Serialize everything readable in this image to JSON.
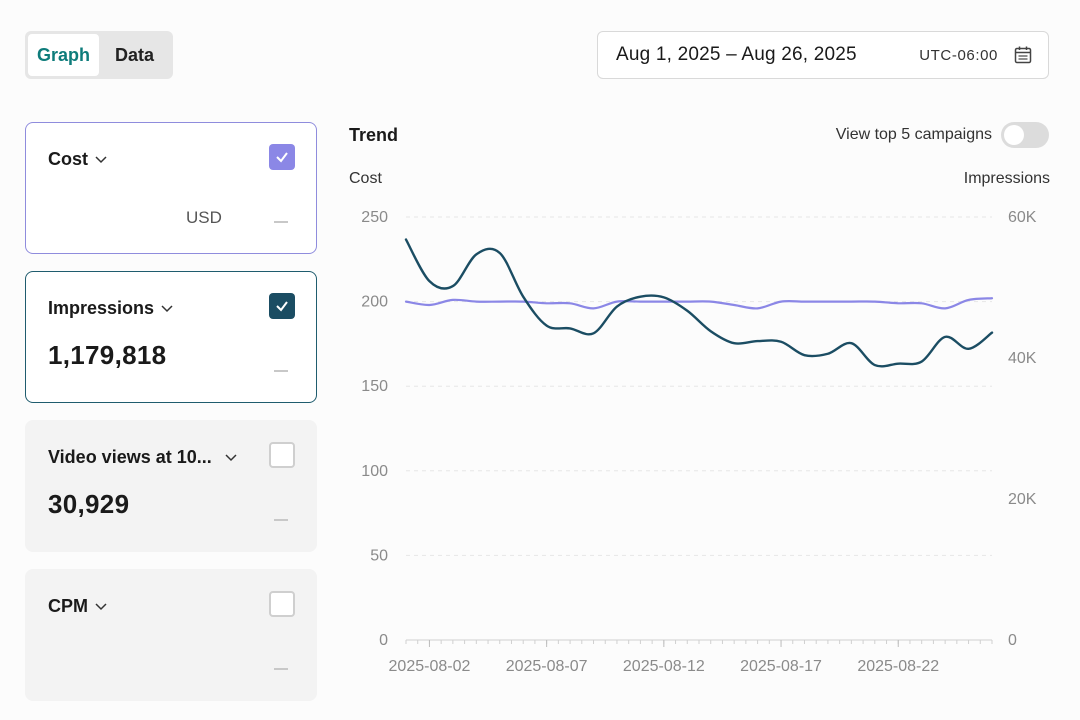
{
  "view_toggle": {
    "graph_label": "Graph",
    "data_label": "Data",
    "active": "Graph"
  },
  "date_picker": {
    "range": "Aug 1, 2025 – Aug 26, 2025",
    "timezone": "UTC-06:00",
    "icon": "calendar-icon"
  },
  "metrics": [
    {
      "label": "Cost",
      "value": "",
      "unit": "USD",
      "checked": true,
      "check_color": "#8b87e6"
    },
    {
      "label": "Impressions",
      "value": "1,179,818",
      "unit": "",
      "checked": true,
      "check_color": "#1b4d63"
    },
    {
      "label": "Video views at 10...",
      "value": "30,929",
      "unit": "",
      "checked": false
    },
    {
      "label": "CPM",
      "value": "",
      "unit": "",
      "checked": false
    }
  ],
  "panel": {
    "title": "Trend",
    "toggle_label": "View top 5 campaigns",
    "toggle_on": false,
    "left_axis_label": "Cost",
    "right_axis_label": "Impressions"
  },
  "chart_data": {
    "type": "line",
    "x": [
      "2025-08-01",
      "2025-08-02",
      "2025-08-03",
      "2025-08-04",
      "2025-08-05",
      "2025-08-06",
      "2025-08-07",
      "2025-08-08",
      "2025-08-09",
      "2025-08-10",
      "2025-08-11",
      "2025-08-12",
      "2025-08-13",
      "2025-08-14",
      "2025-08-15",
      "2025-08-16",
      "2025-08-17",
      "2025-08-18",
      "2025-08-19",
      "2025-08-20",
      "2025-08-21",
      "2025-08-22",
      "2025-08-23",
      "2025-08-24",
      "2025-08-25",
      "2025-08-26"
    ],
    "x_tick_labels": [
      "2025-08-02",
      "2025-08-07",
      "2025-08-12",
      "2025-08-17",
      "2025-08-22"
    ],
    "y_left": {
      "label": "Cost",
      "range": [
        0,
        250
      ],
      "ticks": [
        0,
        50,
        100,
        150,
        200,
        250
      ]
    },
    "y_right": {
      "label": "Impressions",
      "range": [
        0,
        60000
      ],
      "ticks": [
        0,
        20000,
        40000,
        60000
      ],
      "tick_labels": [
        "0",
        "20K",
        "40K",
        "60K"
      ]
    },
    "grid": "horizontal dashed",
    "series": [
      {
        "name": "Cost",
        "axis": "left",
        "color": "#8b87e6",
        "values": [
          200,
          198,
          201,
          200,
          200,
          200,
          199,
          199,
          196,
          200,
          200,
          200,
          200,
          200,
          198,
          196,
          200,
          200,
          200,
          200,
          200,
          199,
          199,
          196,
          201,
          202
        ]
      },
      {
        "name": "Impressions",
        "axis": "right",
        "color": "#1b4d63",
        "values": [
          56800,
          50900,
          50200,
          54700,
          54900,
          48700,
          44600,
          44200,
          43500,
          47300,
          48700,
          48600,
          46700,
          43800,
          42100,
          42400,
          42300,
          40400,
          40600,
          42100,
          39000,
          39200,
          39500,
          43000,
          41300,
          43600
        ]
      }
    ]
  }
}
